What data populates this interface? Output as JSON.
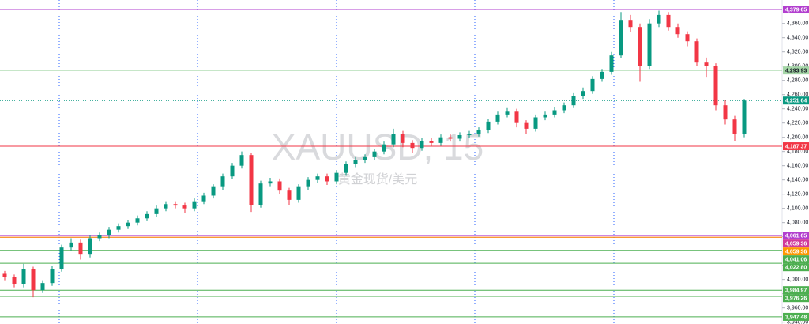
{
  "chart_data": {
    "type": "candlestick",
    "title": "XAUUSD, 15",
    "subtitle": "黄金现货/美元",
    "up_color": "#089981",
    "down_color": "#f23645",
    "open": [
      4008,
      4003,
      3993,
      4015,
      3985,
      3995,
      4015,
      4045,
      4052,
      4035,
      4058,
      4062,
      4070,
      4075,
      4080,
      4086,
      4092,
      4100,
      4106,
      4104,
      4100,
      4110,
      4118,
      4130,
      4145,
      4160,
      4175,
      4105,
      4135,
      4138,
      4125,
      4112,
      4130,
      4140,
      4145,
      4138,
      4150,
      4162,
      4168,
      4172,
      4180,
      4190,
      4205,
      4192,
      4185,
      4195,
      4192,
      4200,
      4198,
      4203,
      4205,
      4210,
      4222,
      4232,
      4236,
      4220,
      4212,
      4228,
      4232,
      4238,
      4245,
      4258,
      4265,
      4282,
      4292,
      4315,
      4365,
      4355,
      4300,
      4360,
      4372,
      4355,
      4345,
      4335,
      4305,
      4300,
      4245,
      4225,
      4205
    ],
    "high": [
      4012,
      4007,
      4022,
      4018,
      3999,
      4019,
      4049,
      4058,
      4056,
      4062,
      4066,
      4074,
      4079,
      4084,
      4090,
      4096,
      4104,
      4110,
      4110,
      4108,
      4114,
      4122,
      4134,
      4149,
      4164,
      4180,
      4178,
      4139,
      4143,
      4142,
      4129,
      4134,
      4144,
      4149,
      4149,
      4154,
      4166,
      4172,
      4176,
      4184,
      4194,
      4212,
      4209,
      4196,
      4199,
      4199,
      4204,
      4204,
      4207,
      4209,
      4214,
      4226,
      4236,
      4241,
      4240,
      4224,
      4232,
      4236,
      4242,
      4249,
      4262,
      4270,
      4286,
      4296,
      4320,
      4376,
      4372,
      4360,
      4366,
      4378,
      4376,
      4360,
      4349,
      4339,
      4312,
      4304,
      4252,
      4230,
      4254
    ],
    "low": [
      3999,
      3989,
      3989,
      3975,
      3981,
      3991,
      4011,
      4041,
      4028,
      4031,
      4054,
      4058,
      4066,
      4071,
      4076,
      4082,
      4088,
      4096,
      4100,
      4094,
      4096,
      4106,
      4114,
      4126,
      4141,
      4156,
      4095,
      4101,
      4130,
      4120,
      4105,
      4108,
      4126,
      4136,
      4133,
      4134,
      4146,
      4158,
      4164,
      4168,
      4176,
      4186,
      4186,
      4178,
      4181,
      4188,
      4188,
      4194,
      4194,
      4199,
      4201,
      4206,
      4218,
      4228,
      4214,
      4205,
      4208,
      4224,
      4228,
      4234,
      4241,
      4254,
      4261,
      4278,
      4288,
      4311,
      4348,
      4278,
      4296,
      4355,
      4350,
      4340,
      4328,
      4300,
      4284,
      4238,
      4218,
      4195,
      4200
    ],
    "close": [
      4003,
      3993,
      4015,
      3985,
      3995,
      4015,
      4045,
      4052,
      4035,
      4058,
      4062,
      4070,
      4075,
      4080,
      4086,
      4092,
      4100,
      4106,
      4104,
      4100,
      4110,
      4118,
      4130,
      4145,
      4160,
      4175,
      4105,
      4135,
      4138,
      4125,
      4112,
      4130,
      4140,
      4145,
      4138,
      4150,
      4162,
      4168,
      4172,
      4180,
      4190,
      4205,
      4192,
      4185,
      4195,
      4192,
      4200,
      4198,
      4203,
      4205,
      4210,
      4222,
      4232,
      4236,
      4220,
      4212,
      4228,
      4232,
      4238,
      4245,
      4258,
      4265,
      4282,
      4292,
      4315,
      4365,
      4355,
      4300,
      4360,
      4372,
      4355,
      4345,
      4335,
      4305,
      4300,
      4245,
      4225,
      4205,
      4251.64
    ],
    "ylim": [
      3937.4,
      4393
    ],
    "yticks": [
      {
        "value": 3940,
        "label": "3,940.00"
      },
      {
        "value": 3960,
        "label": "3,960.00"
      },
      {
        "value": 3980,
        "label": "3,980.00"
      },
      {
        "value": 4000,
        "label": "4,000.00"
      },
      {
        "value": 4020,
        "label": "4,020.00"
      },
      {
        "value": 4040,
        "label": "4,040.00"
      },
      {
        "value": 4060,
        "label": "4,060.00"
      },
      {
        "value": 4080,
        "label": "4,080.00"
      },
      {
        "value": 4100,
        "label": "4,100.00"
      },
      {
        "value": 4120,
        "label": "4,120.00"
      },
      {
        "value": 4140,
        "label": "4,140.00"
      },
      {
        "value": 4160,
        "label": "4,160.00"
      },
      {
        "value": 4180,
        "label": "4,180.00"
      },
      {
        "value": 4200,
        "label": "4,200.00"
      },
      {
        "value": 4220,
        "label": "4,220.00"
      },
      {
        "value": 4240,
        "label": "4,240.00"
      },
      {
        "value": 4260,
        "label": "4,260.00"
      },
      {
        "value": 4280,
        "label": "4,280.00"
      },
      {
        "value": 4300,
        "label": "4,300.00"
      },
      {
        "value": 4320,
        "label": "4,320.00"
      },
      {
        "value": 4340,
        "label": "4,340.00"
      },
      {
        "value": 4360,
        "label": "4,360.00"
      }
    ],
    "levels": [
      {
        "value": 4379.65,
        "label": "4,379.65",
        "color": "#b23fcf",
        "style": "solid"
      },
      {
        "value": 4293.93,
        "label": "4,293.93",
        "color": "#a5d6a7",
        "style": "solid"
      },
      {
        "value": 4251.64,
        "label": "4,251.64",
        "color": "#089981",
        "style": "dotted"
      },
      {
        "value": 4187.37,
        "label": "4,187.37",
        "color": "#f23645",
        "style": "solid"
      },
      {
        "value": 4061.65,
        "label": "4,061.65",
        "color": "#b23fcf",
        "style": "solid"
      },
      {
        "value": 4059.36,
        "label": "4,059.36",
        "color": "#d13a9b",
        "style": "solid"
      },
      {
        "value": 4059.36,
        "label": "4,059.36",
        "color": "#ff9800",
        "style": "solid"
      },
      {
        "value": 4041.06,
        "label": "4,041.06",
        "color": "#4caf50",
        "style": "solid"
      },
      {
        "value": 4022.8,
        "label": "4,022.80",
        "color": "#4caf50",
        "style": "solid"
      },
      {
        "value": 3984.97,
        "label": "3,984.97",
        "color": "#4caf50",
        "style": "solid"
      },
      {
        "value": 3976.26,
        "label": "3,976.26",
        "color": "#4caf50",
        "style": "solid"
      },
      {
        "value": 3947.48,
        "label": "3,947.48",
        "color": "#4caf50",
        "style": "solid"
      }
    ]
  }
}
